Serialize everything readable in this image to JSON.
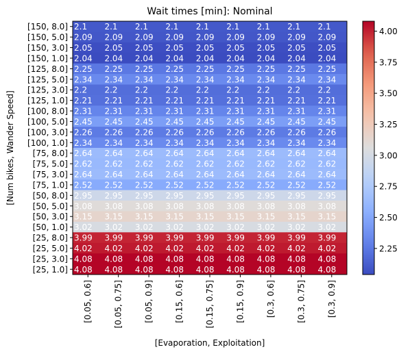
{
  "chart_data": {
    "type": "heatmap",
    "title": "Wait times [min]: Nominal",
    "xlabel": "[Evaporation, Exploitation]",
    "ylabel": "[Num bikes, Wander Speed]",
    "x_categories": [
      "[0.05, 0.6]",
      "[0.05, 0.75]",
      "[0.05, 0.9]",
      "[0.15, 0.6]",
      "[0.15, 0.75]",
      "[0.15, 0.9]",
      "[0.3, 0.6]",
      "[0.3, 0.75]",
      "[0.3, 0.9]"
    ],
    "y_categories": [
      "[150, 8.0]",
      "[150, 5.0]",
      "[150, 3.0]",
      "[150, 1.0]",
      "[125, 8.0]",
      "[125, 5.0]",
      "[125, 3.0]",
      "[125, 1.0]",
      "[100, 8.0]",
      "[100, 5.0]",
      "[100, 3.0]",
      "[100, 1.0]",
      "[75, 8.0]",
      "[75, 5.0]",
      "[75, 3.0]",
      "[75, 1.0]",
      "[50, 8.0]",
      "[50, 5.0]",
      "[50, 3.0]",
      "[50, 1.0]",
      "[25, 8.0]",
      "[25, 5.0]",
      "[25, 3.0]",
      "[25, 1.0]"
    ],
    "row_values": [
      "2.1",
      "2.09",
      "2.05",
      "2.04",
      "2.25",
      "2.34",
      "2.2",
      "2.21",
      "2.31",
      "2.45",
      "2.26",
      "2.34",
      "2.64",
      "2.62",
      "2.64",
      "2.52",
      "2.95",
      "3.08",
      "3.15",
      "3.02",
      "3.99",
      "4.02",
      "4.08",
      "4.08"
    ],
    "colormap": "coolwarm",
    "vmin": 2.04,
    "vmax": 4.08,
    "colorbar_ticks": [
      "2.25",
      "2.50",
      "2.75",
      "3.00",
      "3.25",
      "3.50",
      "3.75",
      "4.00"
    ]
  }
}
